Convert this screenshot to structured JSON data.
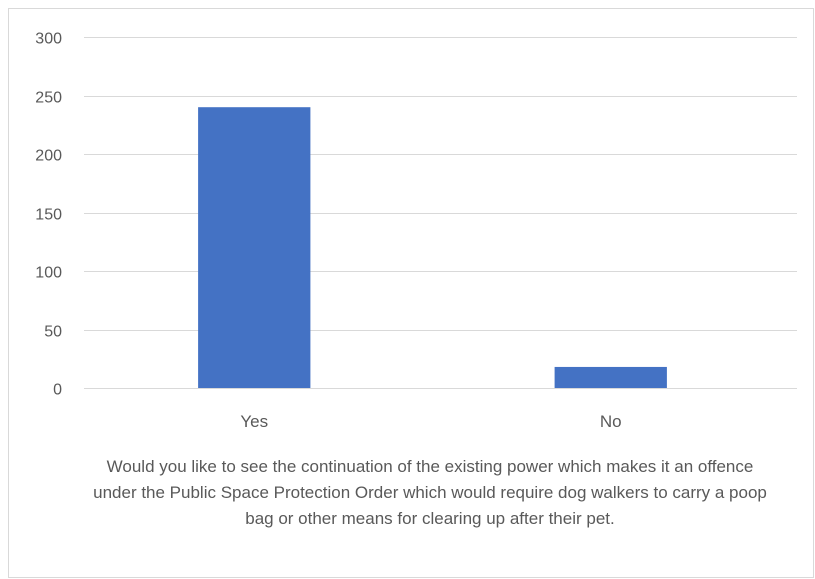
{
  "chart_data": {
    "type": "bar",
    "title": "",
    "categories": [
      "Yes",
      "No"
    ],
    "values": [
      240,
      18
    ],
    "xlabel": "Would you like to see the continuation of the existing power which makes it an offence under the Public Space Protection Order which would require dog walkers to carry a poop bag or other means for clearing up after their pet.",
    "ylabel": "",
    "ylim": [
      0,
      300
    ],
    "yticks": [
      0,
      50,
      100,
      150,
      200,
      250,
      300
    ],
    "grid": true,
    "legend": "none",
    "bar_color": "#4472c4",
    "grid_color": "#d9d9d9"
  }
}
